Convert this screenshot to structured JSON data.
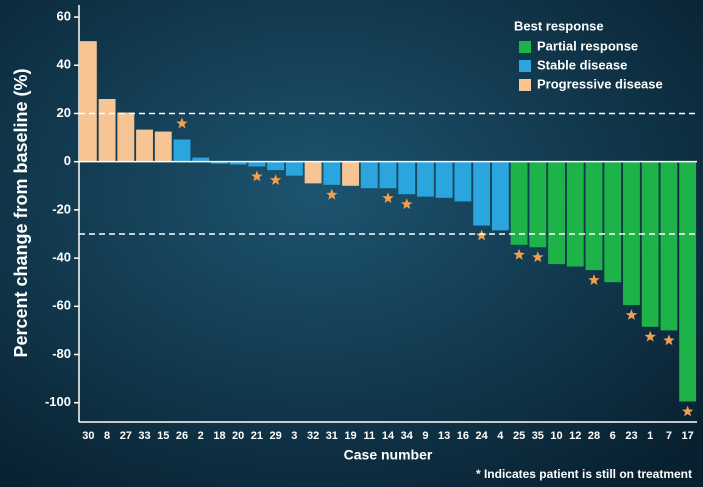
{
  "chart_data": {
    "type": "bar",
    "x_label": "Case number",
    "y_label": "Percent change from baseline (%)",
    "legend_title": "Best response",
    "legend_position": "upper right",
    "footnote": "* Indicates patient is still on treatment",
    "categories": [
      "30",
      "8",
      "27",
      "33",
      "15",
      "26",
      "2",
      "18",
      "20",
      "21",
      "29",
      "3",
      "32",
      "31",
      "19",
      "11",
      "14",
      "34",
      "9",
      "13",
      "16",
      "24",
      "4",
      "25",
      "35",
      "10",
      "12",
      "28",
      "6",
      "23",
      "1",
      "7",
      "17"
    ],
    "series": [
      {
        "name": "Partial response",
        "color": "#1db348",
        "values": [
          null,
          null,
          null,
          null,
          null,
          null,
          null,
          null,
          null,
          null,
          null,
          null,
          null,
          null,
          null,
          null,
          null,
          null,
          null,
          null,
          null,
          null,
          null,
          -34.5,
          -35.5,
          -42.5,
          -43.5,
          -45,
          -50,
          -59.5,
          -68.5,
          -70,
          -99.5
        ]
      },
      {
        "name": "Stable disease",
        "color": "#2aa5dd",
        "values": [
          null,
          null,
          null,
          null,
          null,
          9.2,
          1.7,
          -0.8,
          -1.2,
          -2,
          -3.5,
          -5.8,
          null,
          -9.6,
          null,
          -11,
          -11,
          -13.5,
          -14.5,
          -15,
          -16.5,
          -26.5,
          -28.5,
          null,
          null,
          null,
          null,
          null,
          null,
          null,
          null,
          null,
          null
        ]
      },
      {
        "name": "Progressive disease",
        "color": "#f7c594",
        "values": [
          50,
          26,
          20.4,
          13.3,
          12.5,
          null,
          null,
          null,
          null,
          null,
          null,
          null,
          -9,
          null,
          -10,
          null,
          null,
          null,
          null,
          null,
          null,
          null,
          null,
          null,
          null,
          null,
          null,
          null,
          null,
          null,
          null,
          null,
          null
        ]
      }
    ],
    "on_treatment": [
      false,
      false,
      false,
      false,
      false,
      true,
      false,
      false,
      false,
      true,
      true,
      false,
      false,
      true,
      false,
      false,
      true,
      true,
      false,
      false,
      false,
      true,
      false,
      true,
      true,
      false,
      false,
      true,
      false,
      true,
      true,
      true,
      true
    ],
    "marker_color": "#f0a050",
    "reference_lines": [
      20,
      -30
    ],
    "ylim": [
      -108,
      65
    ],
    "yticks": [
      60,
      40,
      20,
      0,
      -20,
      -40,
      -60,
      -80,
      -100
    ]
  }
}
